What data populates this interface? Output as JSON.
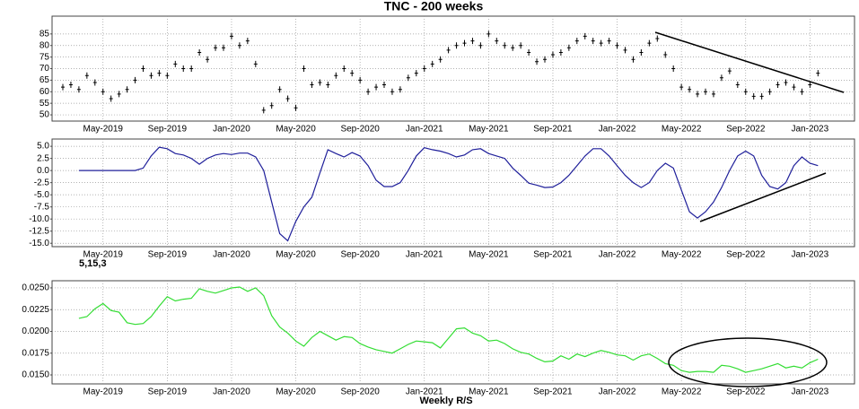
{
  "chart_data": [
    {
      "type": "tick",
      "title": "TNC - 200 weeks",
      "color": "#000000",
      "categories": [
        null,
        null,
        null,
        null,
        null,
        "May-2019",
        null,
        null,
        null,
        null,
        null,
        null,
        null,
        "Sep-2019",
        null,
        null,
        null,
        null,
        null,
        null,
        null,
        "Jan-2020",
        null,
        null,
        null,
        null,
        null,
        null,
        null,
        "May-2020",
        null,
        null,
        null,
        null,
        null,
        null,
        null,
        "Sep-2020",
        null,
        null,
        null,
        null,
        null,
        null,
        null,
        "Jan-2021",
        null,
        null,
        null,
        null,
        null,
        null,
        null,
        "May-2021",
        null,
        null,
        null,
        null,
        null,
        null,
        null,
        "Sep-2021",
        null,
        null,
        null,
        null,
        null,
        null,
        null,
        "Jan-2022",
        null,
        null,
        null,
        null,
        null,
        null,
        null,
        "May-2022",
        null,
        null,
        null,
        null,
        null,
        null,
        null,
        "Sep-2022",
        null,
        null,
        null,
        null,
        null,
        null,
        null,
        "Jan-2023",
        null
      ],
      "values": [
        62,
        63,
        61,
        67,
        64,
        60,
        57,
        59,
        61,
        65,
        70,
        67,
        68,
        67,
        72,
        70,
        70,
        77,
        74,
        79,
        79,
        84,
        80,
        82,
        72,
        52,
        54,
        61,
        57,
        53,
        70,
        63,
        64,
        63,
        67,
        70,
        68,
        65,
        60,
        62,
        63,
        60,
        61,
        66,
        68,
        70,
        72,
        74,
        78,
        80,
        81,
        82,
        80,
        85,
        82,
        80,
        79,
        80,
        77,
        73,
        74,
        76,
        77,
        79,
        82,
        84,
        82,
        81,
        82,
        80,
        78,
        74,
        77,
        81,
        83,
        76,
        70,
        62,
        61,
        59,
        60,
        59,
        66,
        69,
        63,
        60,
        58,
        58,
        60,
        63,
        64,
        62,
        60,
        63,
        68
      ],
      "ylim": [
        47.3,
        92.7
      ],
      "yticks": [
        50,
        55,
        60,
        65,
        70,
        75,
        80,
        85
      ],
      "grid": true
    },
    {
      "type": "line",
      "xlabel": "5,15,3",
      "color": "#1f1f9a",
      "categories": [
        null,
        null,
        null,
        null,
        null,
        "May-2019",
        null,
        null,
        null,
        null,
        null,
        null,
        null,
        "Sep-2019",
        null,
        null,
        null,
        null,
        null,
        null,
        null,
        "Jan-2020",
        null,
        null,
        null,
        null,
        null,
        null,
        null,
        "May-2020",
        null,
        null,
        null,
        null,
        null,
        null,
        null,
        "Sep-2020",
        null,
        null,
        null,
        null,
        null,
        null,
        null,
        "Jan-2021",
        null,
        null,
        null,
        null,
        null,
        null,
        null,
        "May-2021",
        null,
        null,
        null,
        null,
        null,
        null,
        null,
        "Sep-2021",
        null,
        null,
        null,
        null,
        null,
        null,
        null,
        "Jan-2022",
        null,
        null,
        null,
        null,
        null,
        null,
        null,
        "May-2022",
        null,
        null,
        null,
        null,
        null,
        null,
        null,
        "Sep-2022",
        null,
        null,
        null,
        null,
        null,
        null,
        null,
        "Jan-2023",
        null
      ],
      "values": [
        null,
        null,
        0,
        0,
        0,
        0,
        0,
        0,
        0,
        0,
        0.5,
        3,
        4.8,
        4.5,
        3.5,
        3.2,
        2.5,
        1.3,
        2.5,
        3.2,
        3.5,
        3.3,
        3.6,
        3.6,
        2.8,
        0,
        -6.5,
        -13,
        -14.5,
        -10.5,
        -7.5,
        -5.5,
        -0.5,
        4.3,
        3.5,
        2.8,
        3.7,
        3,
        1,
        -2,
        -3.3,
        -3.3,
        -2.5,
        0,
        3,
        4.7,
        4.3,
        4,
        3.5,
        2.8,
        3.2,
        4.3,
        4.5,
        3.5,
        3,
        2.5,
        0.5,
        -1,
        -2.6,
        -3,
        -3.5,
        -3.4,
        -2.5,
        -1,
        1,
        3,
        4.5,
        4.5,
        3,
        1,
        -1,
        -2.5,
        -3.5,
        -2.5,
        0,
        1.5,
        0.5,
        -4,
        -8.5,
        -9.8,
        -8.5,
        -6.5,
        -3.5,
        0,
        3,
        4,
        3,
        -1,
        -3.3,
        -3.8,
        -2.5,
        1,
        2.8,
        1.5,
        1
      ],
      "ylim": [
        -15.7,
        6.5
      ],
      "yticks": [
        {
          "value": 5,
          "label": "5.0"
        },
        {
          "value": 2.5,
          "label": "2.5"
        },
        {
          "value": 0,
          "label": "0.0"
        },
        {
          "value": -2.5,
          "label": "-2.5"
        },
        {
          "value": -5,
          "label": "-5.0"
        },
        {
          "value": -7.5,
          "label": "-7.5"
        },
        {
          "value": -10,
          "label": "-10.0"
        },
        {
          "value": -12.5,
          "label": "-12.5"
        },
        {
          "value": -15,
          "label": "-15.0"
        }
      ],
      "grid": true
    },
    {
      "type": "line",
      "xlabel": "Weekly R/S",
      "color": "#33dd33",
      "categories": [
        null,
        null,
        null,
        null,
        null,
        "May-2019",
        null,
        null,
        null,
        null,
        null,
        null,
        null,
        "Sep-2019",
        null,
        null,
        null,
        null,
        null,
        null,
        null,
        "Jan-2020",
        null,
        null,
        null,
        null,
        null,
        null,
        null,
        "May-2020",
        null,
        null,
        null,
        null,
        null,
        null,
        null,
        "Sep-2020",
        null,
        null,
        null,
        null,
        null,
        null,
        null,
        "Jan-2021",
        null,
        null,
        null,
        null,
        null,
        null,
        null,
        "May-2021",
        null,
        null,
        null,
        null,
        null,
        null,
        null,
        "Sep-2021",
        null,
        null,
        null,
        null,
        null,
        null,
        null,
        "Jan-2022",
        null,
        null,
        null,
        null,
        null,
        null,
        null,
        "May-2022",
        null,
        null,
        null,
        null,
        null,
        null,
        null,
        "Sep-2022",
        null,
        null,
        null,
        null,
        null,
        null,
        null,
        "Jan-2023",
        null
      ],
      "values": [
        null,
        null,
        0.0215,
        0.0217,
        0.0226,
        0.0232,
        0.0224,
        0.0222,
        0.021,
        0.0208,
        0.0209,
        0.0217,
        0.0229,
        0.024,
        0.0235,
        0.0237,
        0.0238,
        0.0249,
        0.0246,
        0.0244,
        0.0247,
        0.025,
        0.0251,
        0.0246,
        0.025,
        0.0241,
        0.0218,
        0.0205,
        0.0198,
        0.0189,
        0.0183,
        0.0193,
        0.02,
        0.0195,
        0.019,
        0.0194,
        0.0193,
        0.0186,
        0.0182,
        0.0179,
        0.0177,
        0.0175,
        0.018,
        0.0185,
        0.0189,
        0.0188,
        0.0187,
        0.0181,
        0.0192,
        0.0203,
        0.0204,
        0.0198,
        0.0195,
        0.0189,
        0.019,
        0.0186,
        0.018,
        0.0176,
        0.0174,
        0.0169,
        0.0165,
        0.0166,
        0.0172,
        0.0168,
        0.0174,
        0.0171,
        0.0175,
        0.0178,
        0.0176,
        0.0173,
        0.0172,
        0.0167,
        0.0172,
        0.0174,
        0.0169,
        0.0163,
        0.0161,
        0.0155,
        0.0153,
        0.0154,
        0.0154,
        0.0153,
        0.0161,
        0.016,
        0.0157,
        0.0153,
        0.0155,
        0.0157,
        0.016,
        0.0163,
        0.0158,
        0.016,
        0.0158,
        0.0164,
        0.0168
      ],
      "ylim": [
        0.01397,
        0.02582
      ],
      "yticks": [
        {
          "value": 0.025,
          "label": "0.0250"
        },
        {
          "value": 0.0225,
          "label": "0.0225"
        },
        {
          "value": 0.02,
          "label": "0.0200"
        },
        {
          "value": 0.0175,
          "label": "0.0175"
        },
        {
          "value": 0.015,
          "label": "0.0150"
        }
      ],
      "grid": true
    }
  ]
}
